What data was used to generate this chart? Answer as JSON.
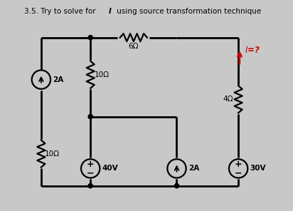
{
  "bg_color": "#c8c8c8",
  "circuit_color": "#000000",
  "red_color": "#cc0000",
  "title_parts": [
    "3.5. Try to solve for ",
    "I",
    " using source transformation technique"
  ],
  "R1": "6Ω",
  "R2": "10Ω",
  "R3": "10Ω",
  "R4": "4Ω",
  "CS1": "2A",
  "VS1": "40V",
  "CS2": "2A",
  "VS2": "30V",
  "I_label": "I=?"
}
